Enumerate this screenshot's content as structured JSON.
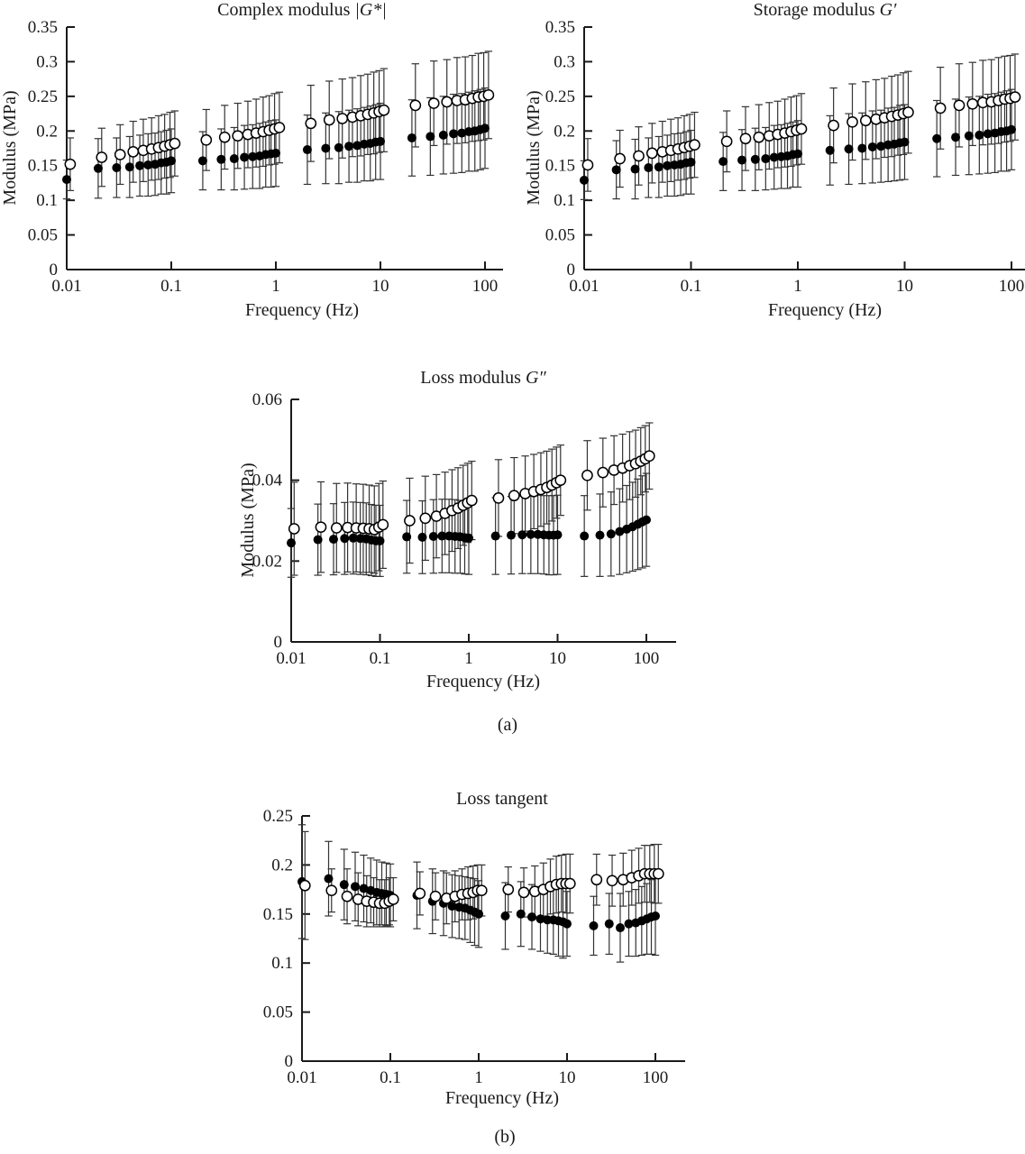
{
  "figure": {
    "panel_a_label": "(a)",
    "panel_b_label": "(b)"
  },
  "colors": {
    "axis": "#1a1a1a",
    "error_bar": "#333333",
    "marker_filled": "#000000",
    "marker_open_fill": "#ffffff",
    "marker_open_stroke": "#000000",
    "background": "#ffffff"
  },
  "frequencies": [
    0.01,
    0.02,
    0.03,
    0.04,
    0.05,
    0.06,
    0.07,
    0.08,
    0.09,
    0.1,
    0.2,
    0.3,
    0.4,
    0.5,
    0.6,
    0.7,
    0.8,
    0.9,
    1,
    2,
    3,
    4,
    5,
    6,
    7,
    8,
    9,
    10,
    20,
    30,
    40,
    50,
    60,
    70,
    80,
    90,
    100
  ],
  "chart_data": [
    {
      "id": "complex-modulus",
      "type": "scatter",
      "title_prefix": "Complex modulus ",
      "title_math": "|G*|",
      "xlabel": "Frequency (Hz)",
      "ylabel": "Modulus (MPa)",
      "xscale": "log",
      "xlim": [
        0.01,
        140
      ],
      "ylim": [
        0,
        0.35
      ],
      "yticks": [
        0,
        0.05,
        0.1,
        0.15,
        0.2,
        0.25,
        0.3,
        0.35
      ],
      "ytick_labels": [
        "0",
        "0.05",
        "0.1",
        "0.15",
        "0.2",
        "0.25",
        "0.3",
        "0.35"
      ],
      "xticks": [
        0.01,
        0.1,
        1,
        10,
        100
      ],
      "xtick_labels": [
        "0.01",
        "0.1",
        "1",
        "10",
        "100"
      ],
      "grid": false,
      "legend": "none",
      "series": [
        {
          "name": "filled-circles",
          "marker": "filled",
          "values": [
            0.13,
            0.146,
            0.147,
            0.148,
            0.15,
            0.151,
            0.152,
            0.154,
            0.155,
            0.157,
            0.157,
            0.159,
            0.16,
            0.162,
            0.163,
            0.164,
            0.166,
            0.167,
            0.168,
            0.173,
            0.175,
            0.176,
            0.178,
            0.179,
            0.181,
            0.182,
            0.184,
            0.185,
            0.19,
            0.192,
            0.194,
            0.196,
            0.197,
            0.199,
            0.2,
            0.202,
            0.204
          ],
          "err": [
            0.028,
            0.043,
            0.043,
            0.044,
            0.044,
            0.045,
            0.045,
            0.045,
            0.046,
            0.046,
            0.042,
            0.044,
            0.045,
            0.046,
            0.046,
            0.047,
            0.047,
            0.048,
            0.048,
            0.05,
            0.051,
            0.052,
            0.052,
            0.053,
            0.053,
            0.054,
            0.054,
            0.055,
            0.055,
            0.056,
            0.056,
            0.057,
            0.057,
            0.057,
            0.058,
            0.058,
            0.058
          ]
        },
        {
          "name": "open-circles",
          "marker": "open",
          "x_offset_factor": 1.08,
          "values": [
            0.152,
            0.162,
            0.166,
            0.17,
            0.172,
            0.174,
            0.176,
            0.178,
            0.18,
            0.182,
            0.187,
            0.191,
            0.193,
            0.195,
            0.197,
            0.199,
            0.201,
            0.203,
            0.205,
            0.211,
            0.216,
            0.218,
            0.22,
            0.222,
            0.224,
            0.226,
            0.228,
            0.23,
            0.237,
            0.24,
            0.242,
            0.244,
            0.245,
            0.247,
            0.249,
            0.25,
            0.252
          ],
          "err": [
            0.038,
            0.042,
            0.043,
            0.044,
            0.045,
            0.045,
            0.046,
            0.046,
            0.047,
            0.047,
            0.044,
            0.046,
            0.047,
            0.048,
            0.049,
            0.05,
            0.05,
            0.051,
            0.051,
            0.055,
            0.056,
            0.057,
            0.057,
            0.058,
            0.058,
            0.059,
            0.059,
            0.06,
            0.06,
            0.061,
            0.061,
            0.062,
            0.062,
            0.062,
            0.063,
            0.063,
            0.063
          ]
        }
      ]
    },
    {
      "id": "storage-modulus",
      "type": "scatter",
      "title_prefix": "Storage modulus ",
      "title_math": "G′",
      "xlabel": "Frequency (Hz)",
      "ylabel": "Modulus (MPa)",
      "xscale": "log",
      "xlim": [
        0.01,
        140
      ],
      "ylim": [
        0,
        0.35
      ],
      "yticks": [
        0,
        0.05,
        0.1,
        0.15,
        0.2,
        0.25,
        0.3,
        0.35
      ],
      "ytick_labels": [
        "0",
        "0.05",
        "0.1",
        "0.15",
        "0.2",
        "0.25",
        "0.3",
        "0.35"
      ],
      "xticks": [
        0.01,
        0.1,
        1,
        10,
        100
      ],
      "xtick_labels": [
        "0.01",
        "0.1",
        "1",
        "10",
        "100"
      ],
      "grid": false,
      "legend": "none",
      "series": [
        {
          "name": "filled-circles",
          "marker": "filled",
          "values": [
            0.129,
            0.144,
            0.145,
            0.147,
            0.148,
            0.15,
            0.151,
            0.152,
            0.154,
            0.155,
            0.156,
            0.158,
            0.159,
            0.16,
            0.162,
            0.163,
            0.164,
            0.166,
            0.167,
            0.172,
            0.174,
            0.175,
            0.177,
            0.178,
            0.18,
            0.181,
            0.183,
            0.184,
            0.189,
            0.191,
            0.193,
            0.194,
            0.196,
            0.197,
            0.199,
            0.2,
            0.202
          ],
          "err": [
            0.028,
            0.042,
            0.043,
            0.043,
            0.044,
            0.044,
            0.045,
            0.045,
            0.045,
            0.046,
            0.042,
            0.044,
            0.045,
            0.045,
            0.046,
            0.046,
            0.047,
            0.047,
            0.048,
            0.05,
            0.051,
            0.051,
            0.052,
            0.052,
            0.053,
            0.053,
            0.054,
            0.054,
            0.055,
            0.055,
            0.056,
            0.056,
            0.057,
            0.057,
            0.057,
            0.058,
            0.058
          ]
        },
        {
          "name": "open-circles",
          "marker": "open",
          "x_offset_factor": 1.08,
          "values": [
            0.151,
            0.16,
            0.164,
            0.168,
            0.17,
            0.172,
            0.174,
            0.176,
            0.178,
            0.18,
            0.185,
            0.189,
            0.191,
            0.193,
            0.195,
            0.197,
            0.199,
            0.201,
            0.203,
            0.208,
            0.213,
            0.215,
            0.217,
            0.219,
            0.221,
            0.223,
            0.225,
            0.227,
            0.233,
            0.237,
            0.239,
            0.241,
            0.242,
            0.244,
            0.246,
            0.247,
            0.249
          ],
          "err": [
            0.038,
            0.041,
            0.042,
            0.043,
            0.044,
            0.045,
            0.045,
            0.046,
            0.046,
            0.047,
            0.044,
            0.046,
            0.047,
            0.048,
            0.048,
            0.049,
            0.05,
            0.05,
            0.051,
            0.054,
            0.055,
            0.056,
            0.057,
            0.057,
            0.058,
            0.058,
            0.059,
            0.059,
            0.059,
            0.06,
            0.06,
            0.061,
            0.061,
            0.062,
            0.062,
            0.062,
            0.062
          ]
        }
      ]
    },
    {
      "id": "loss-modulus",
      "type": "scatter",
      "title_prefix": "Loss modulus ",
      "title_math": "G″",
      "xlabel": "Frequency (Hz)",
      "ylabel": "Modulus (MPa)",
      "xscale": "log",
      "xlim": [
        0.01,
        140
      ],
      "ylim": [
        0,
        0.06
      ],
      "yticks": [
        0,
        0.02,
        0.04,
        0.06
      ],
      "ytick_labels": [
        "0",
        "0.02",
        "0.04",
        "0.06"
      ],
      "xticks": [
        0.01,
        0.1,
        1,
        10,
        100
      ],
      "xtick_labels": [
        "0.01",
        "0.1",
        "1",
        "10",
        "100"
      ],
      "grid": false,
      "legend": "none",
      "series": [
        {
          "name": "filled-circles",
          "marker": "filled",
          "values": [
            0.0245,
            0.0253,
            0.0254,
            0.0256,
            0.0257,
            0.0256,
            0.0255,
            0.0252,
            0.025,
            0.025,
            0.026,
            0.0259,
            0.0261,
            0.0262,
            0.0262,
            0.0261,
            0.026,
            0.0258,
            0.0257,
            0.0262,
            0.0264,
            0.0265,
            0.0266,
            0.0266,
            0.0265,
            0.0264,
            0.0264,
            0.0265,
            0.0262,
            0.0264,
            0.0267,
            0.0273,
            0.0279,
            0.0285,
            0.0291,
            0.0297,
            0.0302
          ],
          "err": [
            0.0085,
            0.0088,
            0.0088,
            0.0089,
            0.0089,
            0.0089,
            0.0089,
            0.0088,
            0.0088,
            0.0088,
            0.009,
            0.009,
            0.0091,
            0.0091,
            0.0091,
            0.0091,
            0.009,
            0.009,
            0.009,
            0.0095,
            0.0096,
            0.0096,
            0.0097,
            0.0097,
            0.0097,
            0.0098,
            0.0098,
            0.0098,
            0.01,
            0.0102,
            0.0104,
            0.0106,
            0.0108,
            0.011,
            0.0112,
            0.0114,
            0.0115
          ]
        },
        {
          "name": "open-circles",
          "marker": "open",
          "x_offset_factor": 1.08,
          "values": [
            0.028,
            0.0284,
            0.0282,
            0.0283,
            0.0282,
            0.0281,
            0.028,
            0.0278,
            0.0284,
            0.029,
            0.03,
            0.0306,
            0.0311,
            0.0318,
            0.0325,
            0.0331,
            0.0338,
            0.0344,
            0.035,
            0.0356,
            0.0362,
            0.0367,
            0.0372,
            0.0377,
            0.0382,
            0.0388,
            0.0394,
            0.04,
            0.0412,
            0.0419,
            0.0425,
            0.043,
            0.0436,
            0.0441,
            0.0447,
            0.0453,
            0.046
          ],
          "err": [
            0.0115,
            0.0112,
            0.011,
            0.011,
            0.0109,
            0.0109,
            0.0108,
            0.0108,
            0.0108,
            0.0108,
            0.0105,
            0.0104,
            0.0103,
            0.0102,
            0.0101,
            0.01,
            0.0099,
            0.0098,
            0.0097,
            0.0095,
            0.0094,
            0.0093,
            0.0092,
            0.0091,
            0.009,
            0.0089,
            0.0088,
            0.0087,
            0.0086,
            0.0085,
            0.0085,
            0.0084,
            0.0084,
            0.0083,
            0.0083,
            0.0082,
            0.0082
          ]
        }
      ]
    },
    {
      "id": "loss-tangent",
      "type": "scatter",
      "title_prefix": "Loss tangent",
      "title_math": "",
      "xlabel": "Frequency (Hz)",
      "ylabel": "",
      "xscale": "log",
      "xlim": [
        0.01,
        140
      ],
      "ylim": [
        0,
        0.25
      ],
      "yticks": [
        0,
        0.05,
        0.1,
        0.15,
        0.2,
        0.25
      ],
      "ytick_labels": [
        "0",
        "0.05",
        "0.1",
        "0.15",
        "0.2",
        "0.25"
      ],
      "xticks": [
        0.01,
        0.1,
        1,
        10,
        100
      ],
      "xtick_labels": [
        "0.01",
        "0.1",
        "1",
        "10",
        "100"
      ],
      "grid": false,
      "legend": "none",
      "series": [
        {
          "name": "filled-circles",
          "marker": "filled",
          "values": [
            0.183,
            0.186,
            0.18,
            0.178,
            0.176,
            0.174,
            0.172,
            0.171,
            0.17,
            0.169,
            0.169,
            0.163,
            0.161,
            0.158,
            0.157,
            0.156,
            0.154,
            0.152,
            0.15,
            0.148,
            0.15,
            0.147,
            0.145,
            0.144,
            0.144,
            0.143,
            0.142,
            0.14,
            0.138,
            0.14,
            0.136,
            0.14,
            0.141,
            0.143,
            0.145,
            0.147,
            0.148
          ],
          "err": [
            0.058,
            0.038,
            0.036,
            0.035,
            0.034,
            0.033,
            0.033,
            0.032,
            0.032,
            0.032,
            0.034,
            0.033,
            0.033,
            0.032,
            0.032,
            0.032,
            0.033,
            0.034,
            0.034,
            0.034,
            0.033,
            0.033,
            0.033,
            0.034,
            0.035,
            0.036,
            0.037,
            0.033,
            0.03,
            0.031,
            0.035,
            0.033,
            0.034,
            0.035,
            0.036,
            0.038,
            0.04
          ]
        },
        {
          "name": "open-circles",
          "marker": "open",
          "x_offset_factor": 1.08,
          "values": [
            0.179,
            0.174,
            0.168,
            0.165,
            0.163,
            0.162,
            0.161,
            0.161,
            0.163,
            0.165,
            0.171,
            0.168,
            0.166,
            0.168,
            0.17,
            0.171,
            0.172,
            0.174,
            0.174,
            0.175,
            0.172,
            0.173,
            0.175,
            0.178,
            0.18,
            0.181,
            0.181,
            0.181,
            0.185,
            0.184,
            0.185,
            0.187,
            0.189,
            0.191,
            0.191,
            0.191,
            0.191
          ],
          "err": [
            0.055,
            0.022,
            0.028,
            0.027,
            0.026,
            0.025,
            0.024,
            0.024,
            0.024,
            0.022,
            0.022,
            0.024,
            0.026,
            0.026,
            0.026,
            0.027,
            0.027,
            0.026,
            0.026,
            0.023,
            0.025,
            0.026,
            0.027,
            0.028,
            0.029,
            0.029,
            0.03,
            0.03,
            0.026,
            0.026,
            0.027,
            0.028,
            0.028,
            0.029,
            0.029,
            0.03,
            0.03
          ]
        }
      ]
    }
  ]
}
